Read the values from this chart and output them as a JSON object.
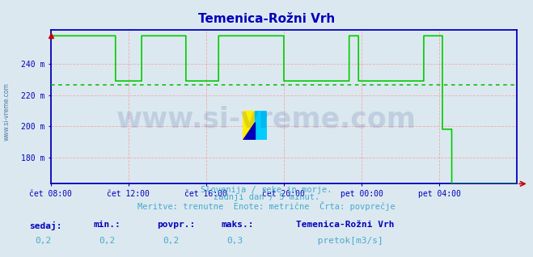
{
  "title": "Temenica-Rožni Vrh",
  "bg_color": "#dce8f0",
  "line_color": "#00cc00",
  "avg_line_color": "#00bb00",
  "axis_color": "#0000bb",
  "grid_color": "#f0aaaa",
  "tick_color": "#0000bb",
  "subtitle_color": "#44aacc",
  "watermark_color": "#0a2a7a",
  "legend_color": "#00cc00",
  "ylim_min": 163,
  "ylim_max": 262,
  "yticks": [
    180,
    200,
    220,
    240
  ],
  "ytick_labels": [
    "180 m",
    "200 m",
    "220 m",
    "240 m"
  ],
  "avg_value": 226.5,
  "footer_line1": "Slovenija / reke in morje.",
  "footer_line2": "zadnji dan / 5 minut.",
  "footer_line3": "Meritve: trenutne  Enote: metrične  Črta: povprečje",
  "stat_labels": [
    "sedaj:",
    "min.:",
    "povpr.:",
    "maks.:"
  ],
  "stat_values": [
    "0,2",
    "0,2",
    "0,2",
    "0,3"
  ],
  "legend_station": "Temenica-Rožni Vrh",
  "legend_label": " pretok[m3/s]",
  "watermark": "www.si-vreme.com",
  "side_label": "www.si-vreme.com",
  "xtick_labels": [
    "čet 08:00",
    "čet 12:00",
    "čet 16:00",
    "čet 20:00",
    "pet 00:00",
    "pet 04:00"
  ],
  "xtick_positions": [
    0.0,
    0.1667,
    0.3333,
    0.5,
    0.6667,
    0.8333
  ],
  "time_points": [
    0.0,
    0.139,
    0.1391,
    0.195,
    0.1951,
    0.29,
    0.2901,
    0.36,
    0.3601,
    0.5,
    0.5001,
    0.64,
    0.6401,
    0.66,
    0.6601,
    0.8,
    0.8001,
    0.84,
    0.8401,
    0.86,
    0.8601,
    1.0
  ],
  "height_values": [
    258,
    258,
    229,
    229,
    258,
    258,
    229,
    229,
    258,
    258,
    229,
    229,
    258,
    258,
    229,
    229,
    258,
    258,
    198,
    198,
    163,
    163
  ]
}
